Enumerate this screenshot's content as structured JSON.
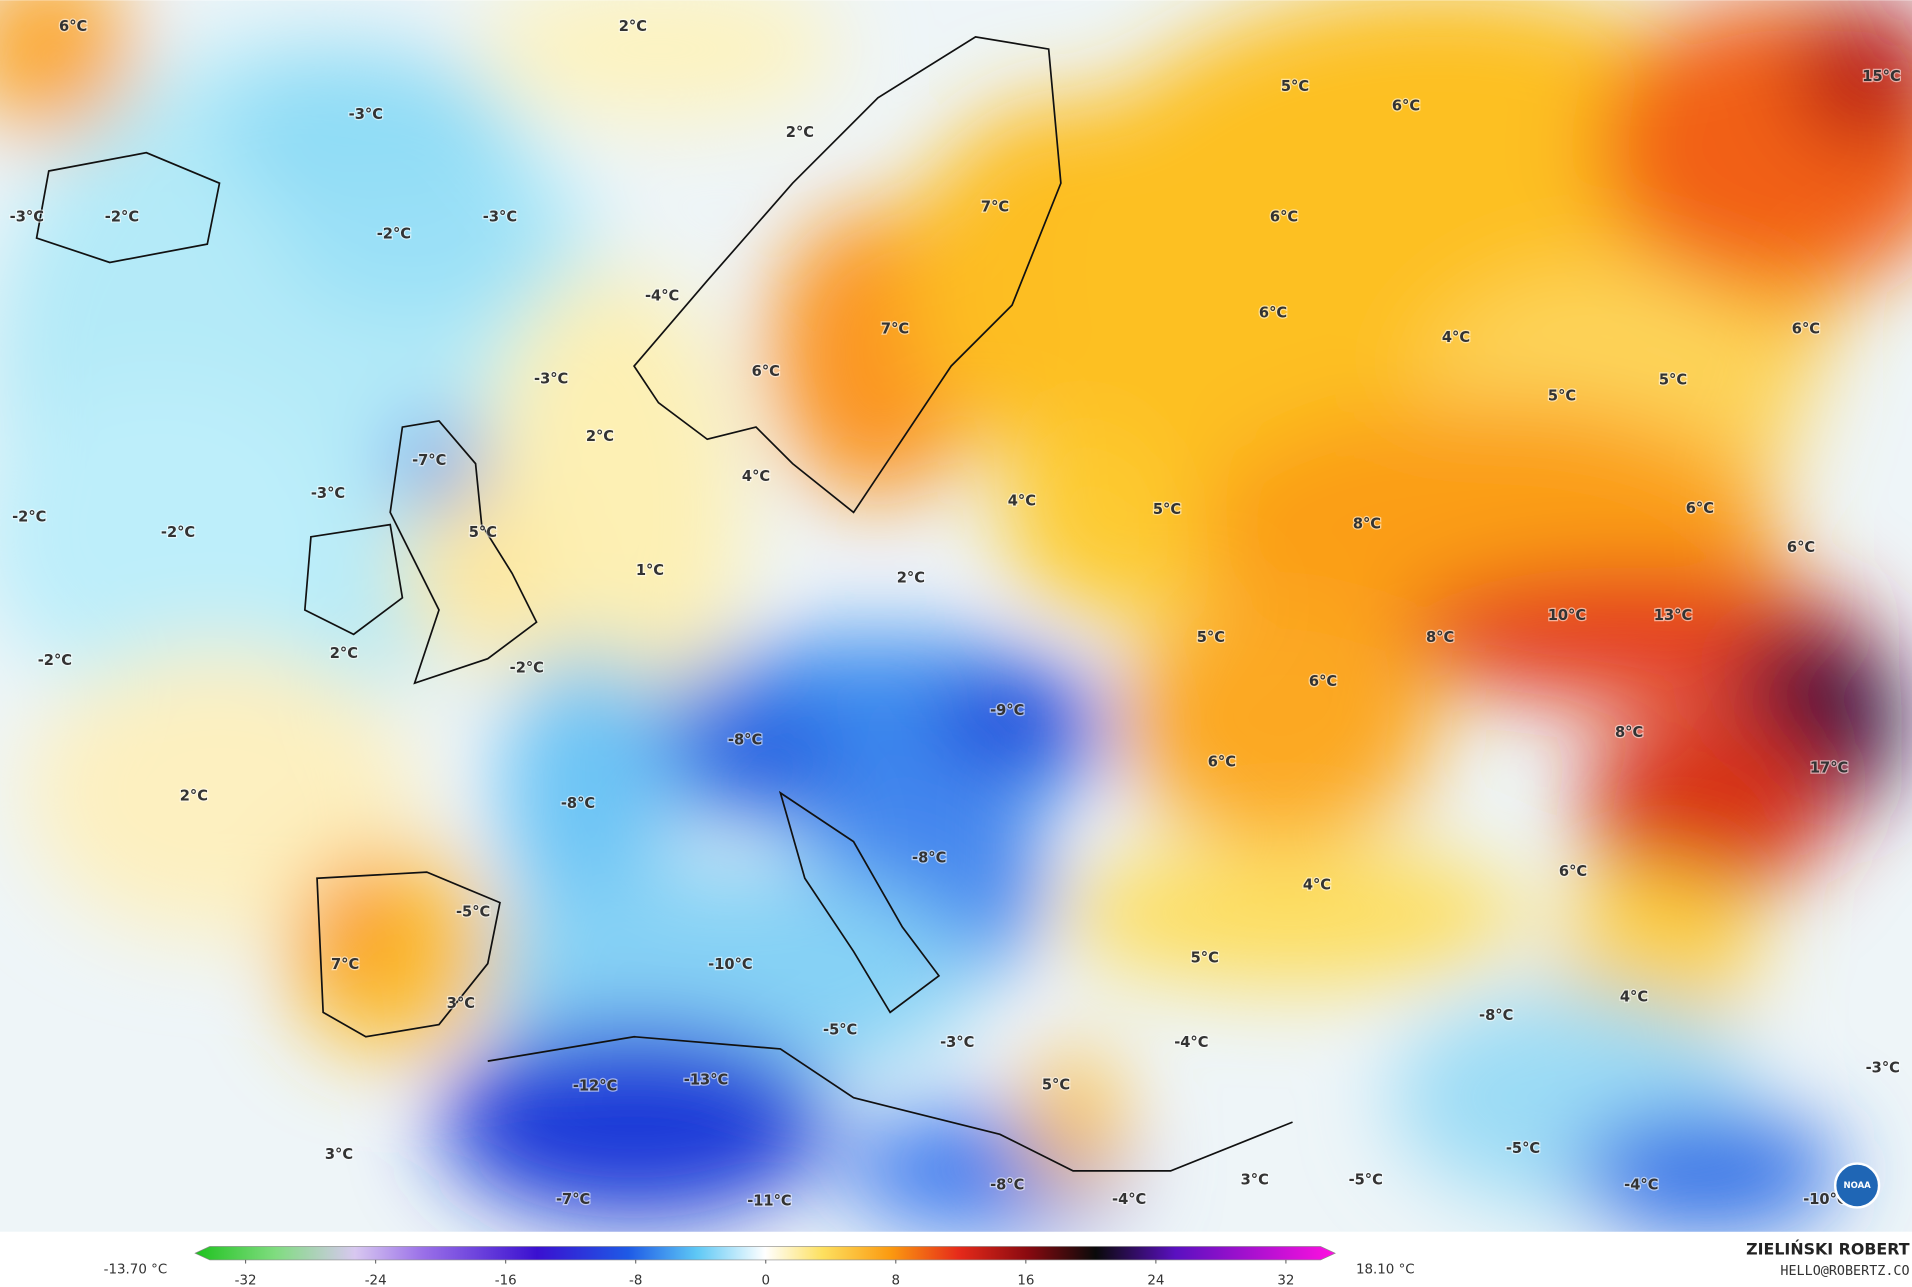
{
  "map": {
    "labels": [
      "6°C",
      "2°C",
      "-3°C",
      "15°C",
      "5°C",
      "6°C",
      "2°C",
      "-3°C",
      "-2°C",
      "-2°C",
      "-3°C",
      "7°C",
      "6°C",
      "-4°C",
      "7°C",
      "6°C",
      "4°C",
      "6°C",
      "6°C",
      "-3°C",
      "5°C",
      "5°C",
      "2°C",
      "-7°C",
      "4°C",
      "-3°C",
      "4°C",
      "5°C",
      "6°C",
      "-2°C",
      "-2°C",
      "5°C",
      "8°C",
      "6°C",
      "1°C",
      "2°C",
      "10°C",
      "13°C",
      "-2°C",
      "2°C",
      "-2°C",
      "5°C",
      "8°C",
      "6°C",
      "-9°C",
      "-8°C",
      "8°C",
      "6°C",
      "17°C",
      "2°C",
      "-8°C",
      "-8°C",
      "6°C",
      "4°C",
      "-5°C",
      "7°C",
      "-10°C",
      "5°C",
      "3°C",
      "-8°C",
      "4°C",
      "-5°C",
      "-3°C",
      "-4°C",
      "-3°C",
      "-12°C",
      "-13°C",
      "5°C",
      "3°C",
      "-5°C",
      "3°C",
      "-5°C",
      "-8°C",
      "-4°C",
      "-7°C",
      "-11°C",
      "-4°C",
      "-10°C"
    ],
    "legend": {
      "min_label": "-13.70 °C",
      "max_label": "18.10 °C",
      "ticks": [
        -32,
        -24,
        -16,
        -8,
        0,
        8,
        16,
        24,
        32
      ]
    },
    "author": "ZIELIŃSKI ROBERT",
    "email": "HELLO@ROBERTZ.CO",
    "logo": "NOAA"
  }
}
